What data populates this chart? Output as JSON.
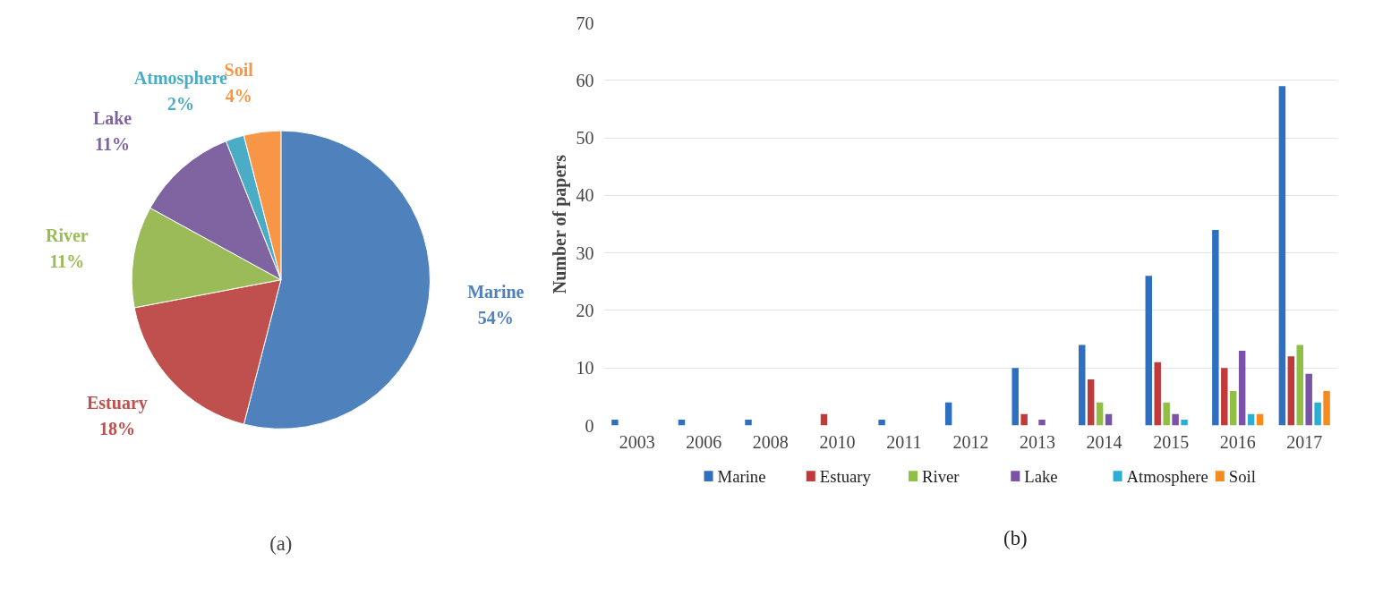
{
  "chart_data": [
    {
      "type": "pie",
      "categories": [
        "Marine",
        "Estuary",
        "River",
        "Lake",
        "Atmosphere",
        "Soil"
      ],
      "values": [
        54,
        18,
        11,
        11,
        2,
        4
      ],
      "colors": [
        "#4f81bd",
        "#c0504d",
        "#9bbb59",
        "#8064a2",
        "#4bacc6",
        "#f79646"
      ],
      "value_labels": [
        "54%",
        "18%",
        "11%",
        "11%",
        "2%",
        "4%"
      ],
      "annotations": [
        "(a)"
      ]
    },
    {
      "type": "bar",
      "categories": [
        "2003",
        "2006",
        "2008",
        "2010",
        "2011",
        "2012",
        "2013",
        "2014",
        "2015",
        "2016",
        "2017"
      ],
      "series": [
        {
          "name": "Marine",
          "color": "#2f6fc0",
          "values": [
            1,
            1,
            1,
            0,
            1,
            4,
            10,
            14,
            26,
            34,
            59
          ]
        },
        {
          "name": "Estuary",
          "color": "#c0393b",
          "values": [
            0,
            0,
            0,
            2,
            0,
            0,
            2,
            8,
            11,
            10,
            12
          ]
        },
        {
          "name": "River",
          "color": "#8fc045",
          "values": [
            0,
            0,
            0,
            0,
            0,
            0,
            0,
            4,
            4,
            6,
            14
          ]
        },
        {
          "name": "Lake",
          "color": "#7a52a8",
          "values": [
            0,
            0,
            0,
            0,
            0,
            0,
            1,
            2,
            2,
            13,
            9
          ]
        },
        {
          "name": "Atmosphere",
          "color": "#2aaed6",
          "values": [
            0,
            0,
            0,
            0,
            0,
            0,
            0,
            0,
            1,
            2,
            4
          ]
        },
        {
          "name": "Soil",
          "color": "#f58a1f",
          "values": [
            0,
            0,
            0,
            0,
            0,
            0,
            0,
            0,
            0,
            2,
            6
          ]
        }
      ],
      "ylabel": "Number of papers",
      "ylim": [
        0,
        70
      ],
      "yticks": [
        0,
        10,
        20,
        30,
        40,
        50,
        60,
        70
      ],
      "grid": "y",
      "legend": "bottom",
      "annotations": [
        "(b)"
      ]
    }
  ]
}
